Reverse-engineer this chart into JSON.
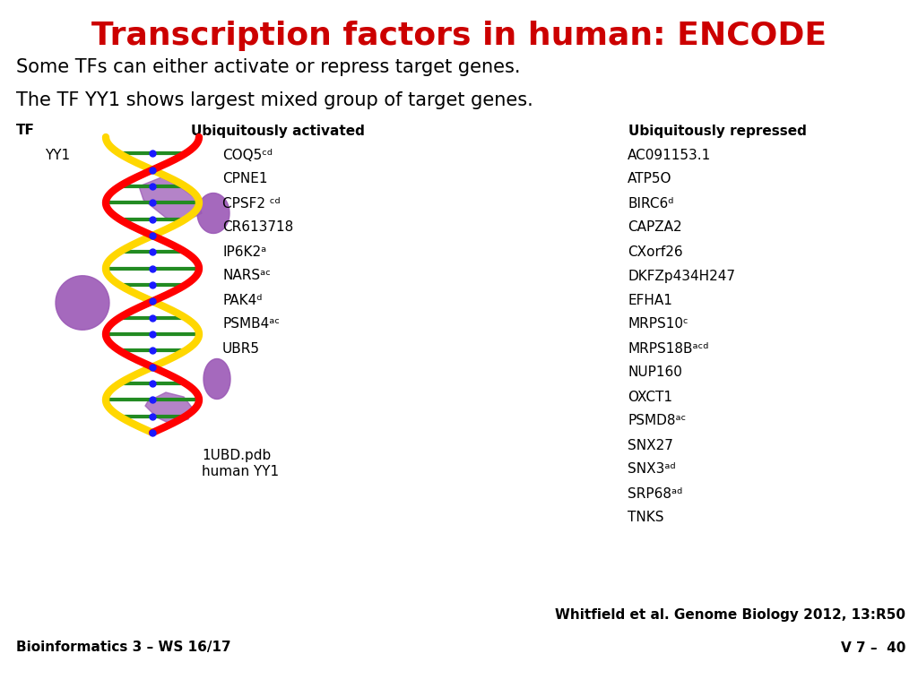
{
  "title": "Transcription factors in human: ENCODE",
  "subtitle": "Some TFs can either activate or repress target genes.",
  "body_text": "The TF YY1 shows largest mixed group of target genes.",
  "title_color": "#CC0000",
  "title_fontsize": 26,
  "subtitle_fontsize": 15,
  "body_fontsize": 15,
  "bg_color": "#FFFFFF",
  "text_color": "#000000",
  "col_header_tf": "TF",
  "col_header_activated": "Ubiquitously activated",
  "col_header_repressed": "Ubiquitously repressed",
  "tf_name": "YY1",
  "activated_genes": [
    "COQ5ᶜᵈ",
    "CPNE1",
    "CPSF2 ᶜᵈ",
    "CR613718",
    "IP6K2ᵃ",
    "NARSᵃᶜ",
    "PAK4ᵈ",
    "PSMB4ᵃᶜ",
    "UBR5"
  ],
  "repressed_genes": [
    "AC091153.1",
    "ATP5O",
    "BIRC6ᵈ",
    "CAPZA2",
    "CXorf26",
    "DKFZp434H247",
    "EFHA1",
    "MRPS10ᶜ",
    "MRPS18Bᵃᶜᵈ",
    "NUP160",
    "OXCT1",
    "PSMD8ᵃᶜ",
    "SNX27",
    "SNX3ᵃᵈ",
    "SRP68ᵃᵈ",
    "TNKS"
  ],
  "caption_line1": "1UBD.pdb",
  "caption_line2": "human YY1",
  "reference": "Whitfield et al. Genome Biology 2012, 13:R50",
  "slide_id": "V 7 –  40",
  "footer_left": "Bioinformatics 3 – WS 16/17",
  "header_fontsize": 11,
  "gene_fontsize": 11,
  "footer_fontsize": 11,
  "ref_fontsize": 11,
  "caption_fontsize": 11
}
